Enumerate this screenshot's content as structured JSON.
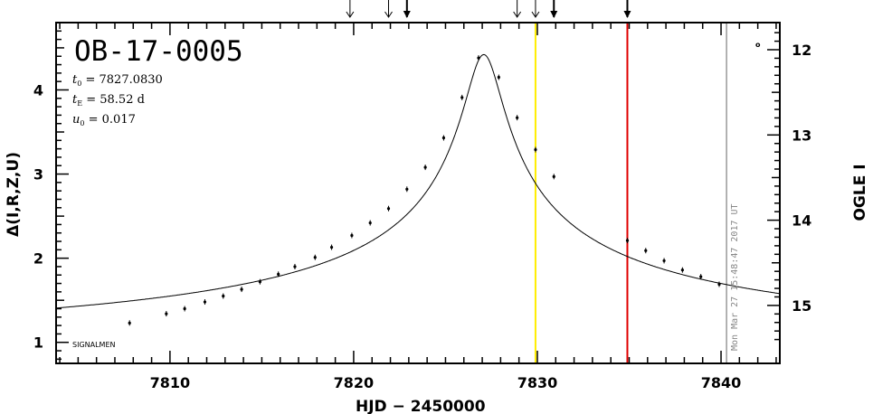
{
  "chart_data": {
    "type": "scatter",
    "title": "OB-17-0005",
    "xlabel": "HJD − 2450000",
    "ylabel": "Δ(I,R,Z,U)",
    "ylabel_right": "OGLE I",
    "xlim": [
      7803.8,
      7843.2
    ],
    "ylim": [
      0.75,
      4.8
    ],
    "x_ticks": [
      7810,
      7820,
      7830,
      7840
    ],
    "y_ticks": [
      1,
      2,
      3,
      4
    ],
    "y_right_ticks": [
      12,
      13,
      14,
      15
    ],
    "params": {
      "t0": "7827.0830",
      "tE": "58.52 d",
      "u0": "0.017"
    },
    "model": {
      "name": "model",
      "t0": 7827.083,
      "tE": 58.52,
      "u0": 0.017,
      "peak": 4.42,
      "scale": 0.42,
      "offset": 0.28
    },
    "points": [
      {
        "x": 7807.8,
        "y": 1.23
      },
      {
        "x": 7809.8,
        "y": 1.34
      },
      {
        "x": 7810.8,
        "y": 1.4
      },
      {
        "x": 7811.9,
        "y": 1.48
      },
      {
        "x": 7812.9,
        "y": 1.55
      },
      {
        "x": 7813.9,
        "y": 1.63
      },
      {
        "x": 7814.9,
        "y": 1.72
      },
      {
        "x": 7815.9,
        "y": 1.81
      },
      {
        "x": 7816.8,
        "y": 1.9
      },
      {
        "x": 7817.9,
        "y": 2.01
      },
      {
        "x": 7818.8,
        "y": 2.13
      },
      {
        "x": 7819.9,
        "y": 2.27
      },
      {
        "x": 7820.9,
        "y": 2.42
      },
      {
        "x": 7821.9,
        "y": 2.59
      },
      {
        "x": 7822.9,
        "y": 2.82
      },
      {
        "x": 7823.9,
        "y": 3.08
      },
      {
        "x": 7824.9,
        "y": 3.43
      },
      {
        "x": 7825.9,
        "y": 3.91
      },
      {
        "x": 7826.8,
        "y": 4.38
      },
      {
        "x": 7827.9,
        "y": 4.15
      },
      {
        "x": 7828.9,
        "y": 3.67
      },
      {
        "x": 7829.9,
        "y": 3.29
      },
      {
        "x": 7830.9,
        "y": 2.97
      },
      {
        "x": 7834.9,
        "y": 2.21
      },
      {
        "x": 7835.9,
        "y": 2.09
      },
      {
        "x": 7836.9,
        "y": 1.97
      },
      {
        "x": 7837.9,
        "y": 1.86
      },
      {
        "x": 7838.9,
        "y": 1.78
      },
      {
        "x": 7839.9,
        "y": 1.69
      }
    ],
    "arrows": [
      {
        "x": 7819.8,
        "bold": false
      },
      {
        "x": 7821.9,
        "bold": false
      },
      {
        "x": 7822.9,
        "bold": true
      },
      {
        "x": 7828.9,
        "bold": false
      },
      {
        "x": 7829.9,
        "bold": false
      },
      {
        "x": 7830.9,
        "bold": true
      },
      {
        "x": 7834.9,
        "bold": true
      }
    ],
    "vlines": [
      {
        "x": 7829.9,
        "color": "#ffee00"
      },
      {
        "x": 7834.9,
        "color": "#e00000"
      },
      {
        "x": 7840.3,
        "color": "#999999"
      }
    ],
    "timestamp": "Mon Mar 27 15:48:47 2017 UT",
    "source_label": "SIGNALMEN",
    "corner_mark": "o"
  }
}
